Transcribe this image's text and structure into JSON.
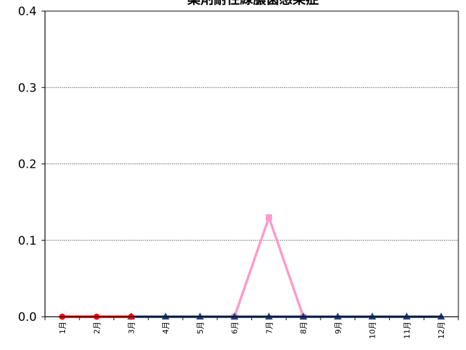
{
  "chart_data": {
    "type": "line",
    "title": "薬剤耐性緑膿菌感染症",
    "xlabel": "",
    "ylabel": "",
    "categories": [
      "1月",
      "2月",
      "3月",
      "4月",
      "5月",
      "6月",
      "7月",
      "8月",
      "9月",
      "10月",
      "11月",
      "12月"
    ],
    "ylim": [
      0,
      0.4
    ],
    "yticks": [
      "0.0",
      "0.1",
      "0.2",
      "0.3",
      "0.4"
    ],
    "grid": true,
    "legend": "none",
    "series": [
      {
        "color": "#ff99cc",
        "marker": "square",
        "values": [
          null,
          null,
          null,
          null,
          null,
          0,
          0.13,
          0,
          null,
          null,
          null,
          null
        ]
      },
      {
        "color": "#1f3f7a",
        "marker": "triangle",
        "values": [
          null,
          null,
          0,
          0,
          0,
          0,
          0,
          0,
          0,
          0,
          0,
          0
        ]
      },
      {
        "color": "#ff0000",
        "marker": "circle",
        "values": [
          0,
          0,
          0,
          null,
          null,
          null,
          null,
          null,
          null,
          null,
          null,
          null
        ]
      }
    ]
  }
}
